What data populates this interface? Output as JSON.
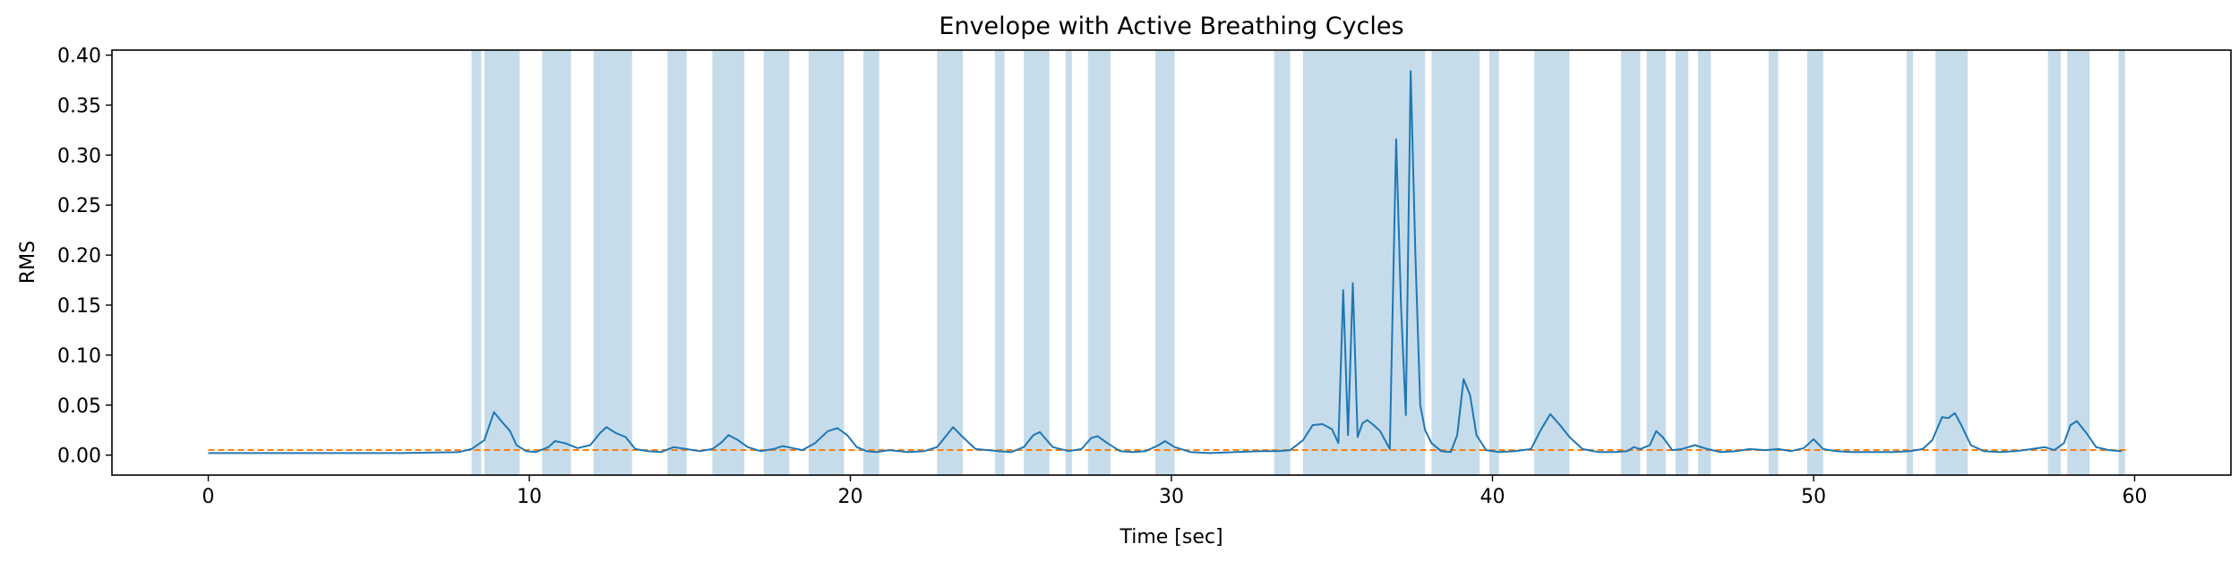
{
  "chart_data": {
    "type": "line",
    "title": "Envelope with Active Breathing Cycles",
    "xlabel": "Time [sec]",
    "ylabel": "RMS",
    "xlim": [
      -3,
      63
    ],
    "ylim": [
      -0.02,
      0.405
    ],
    "xticks": [
      0,
      10,
      20,
      30,
      40,
      50,
      60
    ],
    "yticks": [
      "0.00",
      "0.05",
      "0.10",
      "0.15",
      "0.20",
      "0.25",
      "0.30",
      "0.35",
      "0.40"
    ],
    "grid": false,
    "colors": {
      "envelope": "#1f77b4",
      "threshold": "#ff7f0e",
      "active_region": "#c6dceb"
    },
    "threshold": 0.005,
    "active_regions": [
      [
        8.2,
        8.5
      ],
      [
        8.6,
        9.7
      ],
      [
        10.4,
        11.3
      ],
      [
        12.0,
        13.2
      ],
      [
        14.3,
        14.9
      ],
      [
        15.7,
        16.7
      ],
      [
        17.3,
        18.1
      ],
      [
        18.7,
        19.8
      ],
      [
        20.4,
        20.9
      ],
      [
        22.7,
        23.5
      ],
      [
        24.5,
        24.8
      ],
      [
        25.4,
        26.2
      ],
      [
        26.7,
        26.9
      ],
      [
        27.4,
        28.1
      ],
      [
        29.5,
        30.1
      ],
      [
        33.2,
        33.7
      ],
      [
        34.1,
        35.2
      ],
      [
        35.2,
        37.9
      ],
      [
        38.1,
        39.6
      ],
      [
        39.9,
        40.2
      ],
      [
        41.3,
        42.4
      ],
      [
        44.0,
        44.6
      ],
      [
        44.8,
        45.4
      ],
      [
        45.7,
        46.1
      ],
      [
        46.4,
        46.8
      ],
      [
        48.6,
        48.9
      ],
      [
        49.8,
        50.3
      ],
      [
        52.9,
        53.1
      ],
      [
        53.8,
        54.8
      ],
      [
        57.3,
        57.7
      ],
      [
        57.9,
        58.6
      ],
      [
        59.5,
        59.7
      ]
    ],
    "series": [
      {
        "x": [
          0,
          2,
          4,
          6,
          7.8,
          8.2,
          8.6,
          8.9,
          9.1,
          9.4,
          9.6,
          9.9,
          10.2,
          10.6,
          10.8,
          11.1,
          11.5,
          11.9,
          12.2,
          12.4,
          12.7,
          13.0,
          13.3,
          13.7,
          14.1,
          14.5,
          14.9,
          15.3,
          15.7,
          16.0,
          16.2,
          16.5,
          16.8,
          17.2,
          17.6,
          17.9,
          18.2,
          18.5,
          18.9,
          19.3,
          19.6,
          19.9,
          20.2,
          20.5,
          20.8,
          21.2,
          21.8,
          22.3,
          22.7,
          23.0,
          23.2,
          23.5,
          23.9,
          24.3,
          24.6,
          25.0,
          25.4,
          25.7,
          25.9,
          26.3,
          26.8,
          27.2,
          27.5,
          27.7,
          28.0,
          28.4,
          28.8,
          29.2,
          29.6,
          29.8,
          30.1,
          30.6,
          31.2,
          32.0,
          32.8,
          33.3,
          33.7,
          34.1,
          34.4,
          34.7,
          35.0,
          35.2,
          35.35,
          35.5,
          35.65,
          35.8,
          35.95,
          36.1,
          36.3,
          36.5,
          36.8,
          37.0,
          37.15,
          37.3,
          37.45,
          37.6,
          37.75,
          37.9,
          38.1,
          38.4,
          38.7,
          38.9,
          39.1,
          39.3,
          39.5,
          39.8,
          40.2,
          40.7,
          41.2,
          41.5,
          41.8,
          42.1,
          42.4,
          42.8,
          43.3,
          43.8,
          44.2,
          44.4,
          44.6,
          44.9,
          45.1,
          45.3,
          45.6,
          45.9,
          46.3,
          46.7,
          47.1,
          47.6,
          48.0,
          48.5,
          48.9,
          49.3,
          49.7,
          50.0,
          50.3,
          50.7,
          51.2,
          51.8,
          52.5,
          53.0,
          53.4,
          53.7,
          54.0,
          54.2,
          54.4,
          54.6,
          54.9,
          55.3,
          55.8,
          56.3,
          56.8,
          57.2,
          57.5,
          57.8,
          58.0,
          58.2,
          58.5,
          58.8,
          59.2,
          59.6
        ],
        "y": [
          0.002,
          0.002,
          0.002,
          0.002,
          0.003,
          0.006,
          0.015,
          0.043,
          0.035,
          0.024,
          0.01,
          0.004,
          0.003,
          0.008,
          0.014,
          0.012,
          0.007,
          0.01,
          0.022,
          0.028,
          0.022,
          0.018,
          0.006,
          0.004,
          0.003,
          0.008,
          0.006,
          0.004,
          0.006,
          0.013,
          0.02,
          0.015,
          0.008,
          0.004,
          0.006,
          0.009,
          0.007,
          0.005,
          0.012,
          0.024,
          0.027,
          0.02,
          0.008,
          0.004,
          0.003,
          0.005,
          0.003,
          0.004,
          0.008,
          0.02,
          0.028,
          0.018,
          0.006,
          0.005,
          0.004,
          0.003,
          0.008,
          0.02,
          0.023,
          0.008,
          0.004,
          0.006,
          0.017,
          0.019,
          0.012,
          0.004,
          0.003,
          0.004,
          0.01,
          0.014,
          0.008,
          0.003,
          0.002,
          0.003,
          0.004,
          0.004,
          0.005,
          0.015,
          0.03,
          0.031,
          0.026,
          0.012,
          0.165,
          0.02,
          0.172,
          0.018,
          0.032,
          0.035,
          0.03,
          0.024,
          0.006,
          0.316,
          0.15,
          0.04,
          0.384,
          0.2,
          0.05,
          0.025,
          0.012,
          0.004,
          0.003,
          0.02,
          0.076,
          0.06,
          0.02,
          0.005,
          0.003,
          0.004,
          0.006,
          0.025,
          0.041,
          0.03,
          0.018,
          0.006,
          0.003,
          0.003,
          0.004,
          0.008,
          0.006,
          0.01,
          0.024,
          0.018,
          0.005,
          0.006,
          0.01,
          0.006,
          0.003,
          0.004,
          0.006,
          0.005,
          0.006,
          0.004,
          0.007,
          0.016,
          0.006,
          0.004,
          0.003,
          0.003,
          0.003,
          0.004,
          0.006,
          0.015,
          0.038,
          0.037,
          0.042,
          0.03,
          0.01,
          0.004,
          0.003,
          0.004,
          0.006,
          0.008,
          0.005,
          0.012,
          0.03,
          0.034,
          0.022,
          0.008,
          0.005,
          0.004
        ]
      }
    ]
  }
}
